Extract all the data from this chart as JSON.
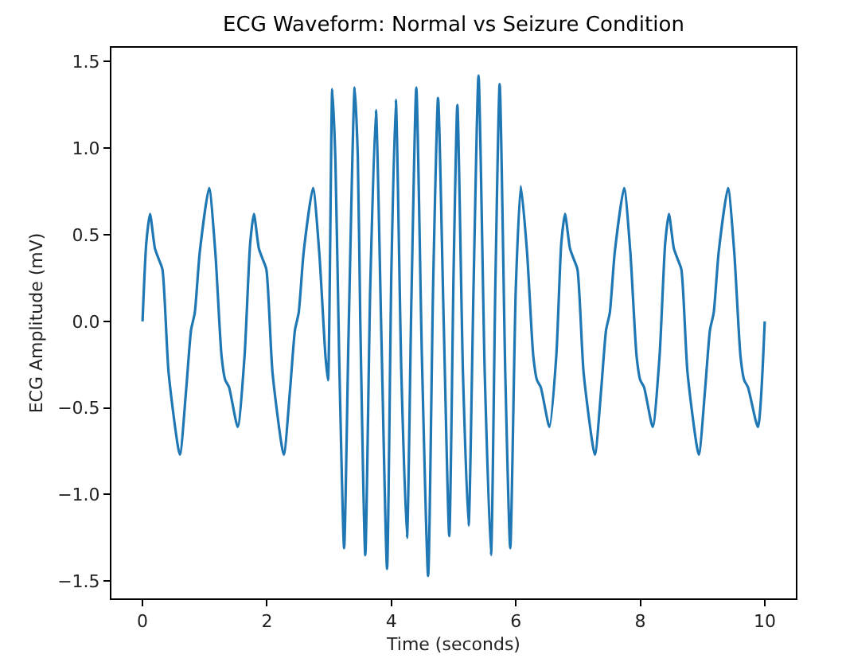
{
  "chart_data": {
    "type": "line",
    "title": "ECG Waveform: Normal vs Seizure Condition",
    "xlabel": "Time (seconds)",
    "ylabel": "ECG Amplitude (mV)",
    "x": [
      0,
      0.06,
      0.12,
      0.2,
      0.26,
      0.32,
      0.42,
      0.6,
      0.7,
      0.78,
      0.84,
      0.92,
      1.07,
      1.17,
      1.27,
      1.33,
      1.39,
      1.53,
      1.64,
      1.73,
      1.79,
      1.87,
      1.93,
      1.99,
      2.09,
      2.27,
      2.37,
      2.45,
      2.51,
      2.59,
      2.74,
      2.84,
      2.94,
      2.98,
      3.05,
      3.1,
      3.16,
      3.24,
      3.31,
      3.41,
      3.46,
      3.5,
      3.58,
      3.66,
      3.75,
      3.84,
      3.93,
      4.0,
      4.07,
      4.16,
      4.25,
      4.32,
      4.4,
      4.49,
      4.59,
      4.67,
      4.75,
      4.84,
      4.93,
      5.0,
      5.06,
      5.15,
      5.24,
      5.32,
      5.4,
      5.5,
      5.6,
      5.67,
      5.74,
      5.83,
      5.91,
      6.0,
      6.08,
      6.18,
      6.28,
      6.34,
      6.4,
      6.54,
      6.65,
      6.73,
      6.79,
      6.87,
      6.93,
      6.99,
      7.09,
      7.27,
      7.37,
      7.45,
      7.51,
      7.59,
      7.74,
      7.84,
      7.94,
      8.0,
      8.06,
      8.2,
      8.31,
      8.4,
      8.46,
      8.54,
      8.6,
      8.66,
      8.76,
      8.94,
      9.04,
      9.12,
      9.18,
      9.26,
      9.41,
      9.51,
      9.61,
      9.67,
      9.73,
      9.89,
      10.0
    ],
    "series": [
      {
        "color": "#1f77b4",
        "values": [
          0.0,
          0.45,
          0.62,
          0.42,
          0.36,
          0.3,
          -0.3,
          -0.77,
          -0.4,
          -0.05,
          0.05,
          0.4,
          0.77,
          0.4,
          -0.2,
          -0.34,
          -0.38,
          -0.61,
          -0.2,
          0.45,
          0.62,
          0.42,
          0.36,
          0.3,
          -0.3,
          -0.77,
          -0.4,
          -0.05,
          0.05,
          0.4,
          0.77,
          0.4,
          -0.2,
          -0.34,
          1.34,
          0.93,
          -0.2,
          -1.31,
          -0.1,
          1.35,
          0.95,
          0.0,
          -1.35,
          0.2,
          1.22,
          -0.1,
          -1.43,
          0.3,
          1.28,
          -0.3,
          -1.25,
          0.1,
          1.35,
          -0.2,
          -1.47,
          0.2,
          1.29,
          0.0,
          -1.24,
          0.3,
          1.25,
          -0.3,
          -1.18,
          0.2,
          1.42,
          -0.3,
          -1.35,
          0.2,
          1.37,
          -0.3,
          -1.31,
          0.2,
          0.78,
          0.4,
          -0.2,
          -0.34,
          -0.38,
          -0.61,
          -0.2,
          0.45,
          0.62,
          0.42,
          0.36,
          0.3,
          -0.3,
          -0.77,
          -0.4,
          -0.05,
          0.05,
          0.4,
          0.77,
          0.4,
          -0.2,
          -0.34,
          -0.38,
          -0.61,
          -0.2,
          0.45,
          0.62,
          0.42,
          0.36,
          0.3,
          -0.3,
          -0.77,
          -0.4,
          -0.05,
          0.05,
          0.4,
          0.77,
          0.4,
          -0.2,
          -0.34,
          -0.38,
          -0.61,
          0.0
        ]
      }
    ],
    "xlim": [
      -0.5,
      10.5
    ],
    "xticks": [
      0,
      2,
      4,
      6,
      8,
      10
    ],
    "ylim": [
      -1.6,
      1.58
    ],
    "yticks": [
      {
        "value": -1.5,
        "label": "−1.5"
      },
      {
        "value": -1.0,
        "label": "−1.0"
      },
      {
        "value": -0.5,
        "label": "−0.5"
      },
      {
        "value": 0,
        "label": "0.0"
      },
      {
        "value": 0.5,
        "label": "0.5"
      },
      {
        "value": 1.0,
        "label": "1.0"
      },
      {
        "value": 1.5,
        "label": "1.5"
      }
    ]
  }
}
